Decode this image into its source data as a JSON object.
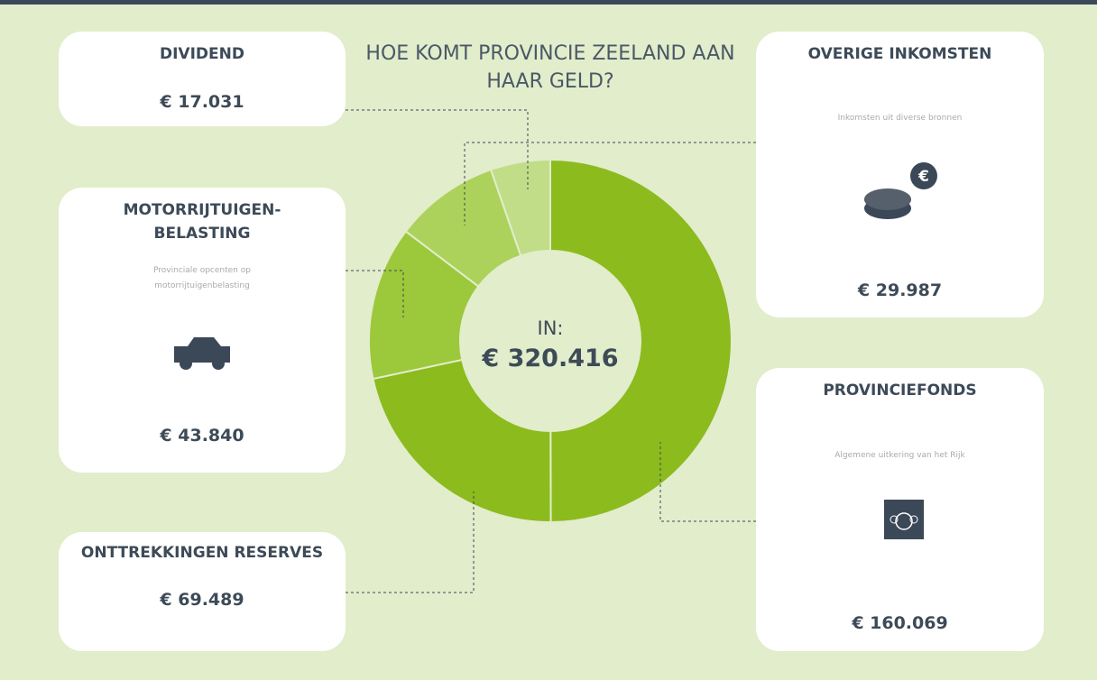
{
  "chart_data": {
    "type": "donut",
    "title": "HOE KOMT PROVINCIE ZEELAND AAN HAAR GELD?",
    "center_title": "IN:",
    "center_value": "€ 320.416",
    "categories": [
      "PROVINCIEFONDS",
      "ONTTREKKINGEN RESERVES",
      "MOTORRIJTUIGEN-BELASTING",
      "OVERIGE INKOMSTEN",
      "DIVIDEND"
    ],
    "descriptions": [
      "Algemene uitkering van het Rijk",
      null,
      "Provinciale opcenten op motorrijtuigenbelasting",
      "Inkomsten uit diverse bronnen",
      null
    ],
    "values": [
      160069,
      69489,
      43840,
      29987,
      17031
    ],
    "value_labels": [
      "€ 160.069",
      "€ 69.489",
      "€ 43.840",
      "€ 29.987",
      "€ 17.031"
    ],
    "colors": [
      "#8cbb1e",
      "#8cbb1e",
      "#9cc83b",
      "#acd25b",
      "#c1dd88"
    ]
  }
}
